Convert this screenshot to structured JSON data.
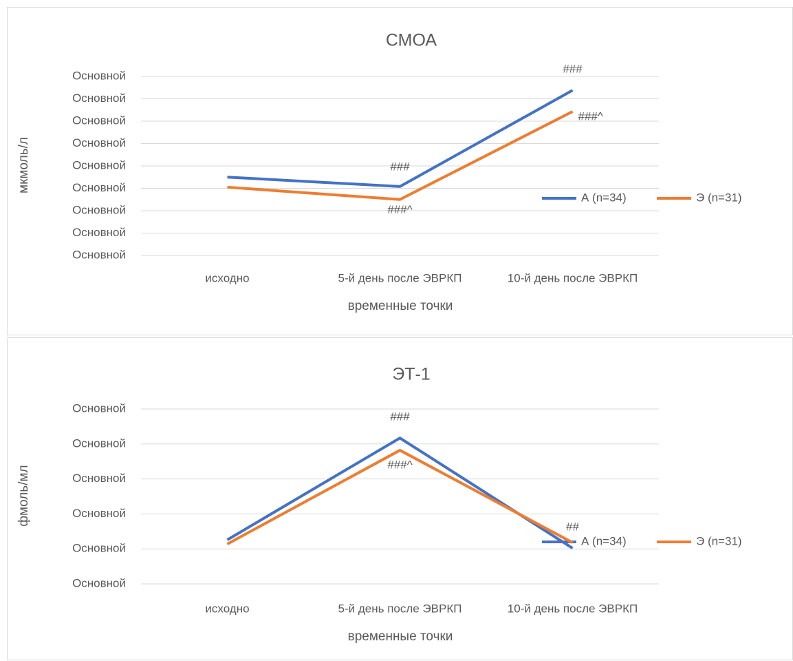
{
  "chart_data": [
    {
      "type": "line",
      "title": "СМОА",
      "y_label": "мкмоль/л",
      "x_label": "временные точки",
      "categories": [
        "исходно",
        "5-й день после ЭВРКП",
        "10-й день после ЭВРКП"
      ],
      "series": [
        {
          "name": "А (n=34)",
          "color": "#4472c4",
          "values": [
            3.5,
            3.08,
            7.38
          ]
        },
        {
          "name": "Э (n=31)",
          "color": "#ed7d31",
          "values": [
            3.05,
            2.5,
            6.43
          ]
        }
      ],
      "ylim": [
        0,
        8
      ],
      "yticks": [
        {
          "value": 0,
          "label": "Основной"
        },
        {
          "value": 1,
          "label": "Основной"
        },
        {
          "value": 2,
          "label": "Основной"
        },
        {
          "value": 3,
          "label": "Основной"
        },
        {
          "value": 4,
          "label": "Основной"
        },
        {
          "value": 5,
          "label": "Основной"
        },
        {
          "value": 6,
          "label": "Основной"
        },
        {
          "value": 7,
          "label": "Основной"
        },
        {
          "value": 8,
          "label": "Основной"
        }
      ],
      "grid": true,
      "legend": "right",
      "annotations": [
        "###",
        "###^",
        "###",
        "###^"
      ]
    },
    {
      "type": "line",
      "title": "ЭТ-1",
      "y_label": "фмоль/мл",
      "x_label": "временные точки",
      "categories": [
        "исходно",
        "5-й день после ЭВРКП",
        "10-й день после ЭВРКП"
      ],
      "series": [
        {
          "name": "А (n=34)",
          "color": "#4472c4",
          "values": [
            1.26,
            4.17,
            1.02
          ]
        },
        {
          "name": "Э (n=31)",
          "color": "#ed7d31",
          "values": [
            1.14,
            3.82,
            1.18
          ]
        }
      ],
      "ylim": [
        0,
        5
      ],
      "yticks": [
        {
          "value": 0,
          "label": "Основной"
        },
        {
          "value": 1,
          "label": "Основной"
        },
        {
          "value": 2,
          "label": "Основной"
        },
        {
          "value": 3,
          "label": "Основной"
        },
        {
          "value": 4,
          "label": "Основной"
        },
        {
          "value": 5,
          "label": "Основной"
        }
      ],
      "grid": true,
      "legend": "right",
      "annotations": [
        "###",
        "###^",
        "##"
      ]
    }
  ]
}
